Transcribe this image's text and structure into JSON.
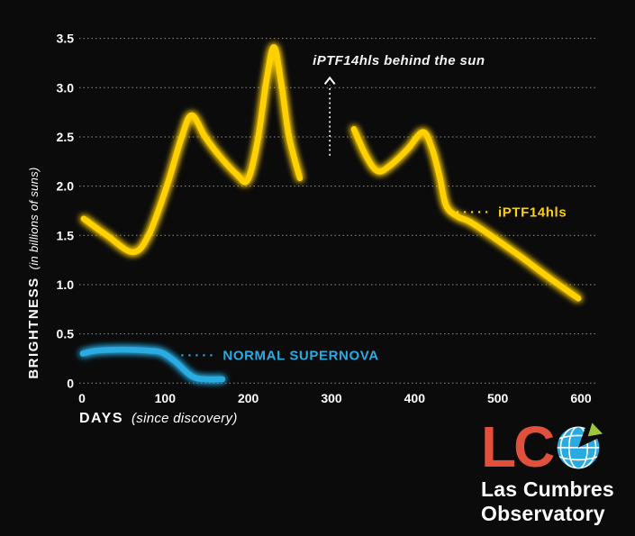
{
  "colors": {
    "background": "#0b0b0c",
    "yellow": "#ffd100",
    "blue": "#29abe2",
    "grid": "rgba(255,255,255,0.55)",
    "text": "#ffffff"
  },
  "chart_data": {
    "type": "line",
    "title": "",
    "xlabel": "DAYS",
    "xlabel_suffix": "(since discovery)",
    "ylabel": "BRIGHTNESS",
    "ylabel_suffix": "(in billions of suns)",
    "xlim": [
      0,
      600
    ],
    "ylim": [
      0,
      3.5
    ],
    "x_ticks": [
      0,
      100,
      200,
      300,
      400,
      500,
      600
    ],
    "y_tick_labels": [
      "0",
      "0.5",
      "1.0",
      "1.5",
      "2.0",
      "2.5",
      "3.0",
      "3.5"
    ],
    "grid": "horizontal dotted lines at every 0.5, dotted baseline at 0",
    "legend_position": "inline curve labels",
    "series": [
      {
        "name": "iPTF14hls",
        "color": "#ffd100",
        "units": {
          "x": "days since discovery",
          "y": "billions of suns"
        },
        "gap_note": "no data between day ~262 and ~327 while iPTF14hls was behind the sun",
        "segments": [
          [
            [
              2,
              1.67
            ],
            [
              30,
              1.5
            ],
            [
              61,
              1.33
            ],
            [
              80,
              1.5
            ],
            [
              102,
              2.0
            ],
            [
              120,
              2.5
            ],
            [
              132,
              2.72
            ],
            [
              148,
              2.5
            ],
            [
              166,
              2.3
            ],
            [
              186,
              2.12
            ],
            [
              199,
              2.06
            ],
            [
              211,
              2.45
            ],
            [
              222,
              3.08
            ],
            [
              231,
              3.41
            ],
            [
              240,
              3.02
            ],
            [
              249,
              2.5
            ],
            [
              262,
              2.08
            ]
          ],
          [
            [
              327,
              2.58
            ],
            [
              342,
              2.3
            ],
            [
              356,
              2.15
            ],
            [
              372,
              2.22
            ],
            [
              392,
              2.38
            ],
            [
              410,
              2.55
            ],
            [
              421,
              2.38
            ],
            [
              430,
              2.1
            ],
            [
              438,
              1.8
            ],
            [
              452,
              1.69
            ],
            [
              470,
              1.62
            ],
            [
              520,
              1.33
            ],
            [
              560,
              1.08
            ],
            [
              597,
              0.86
            ]
          ]
        ]
      },
      {
        "name": "NORMAL SUPERNOVA",
        "color": "#29abe2",
        "units": {
          "x": "days since discovery",
          "y": "billions of suns"
        },
        "segments": [
          [
            [
              1,
              0.3
            ],
            [
              18,
              0.33
            ],
            [
              50,
              0.34
            ],
            [
              80,
              0.33
            ],
            [
              96,
              0.31
            ],
            [
              112,
              0.22
            ],
            [
              132,
              0.07
            ],
            [
              148,
              0.04
            ],
            [
              169,
              0.04
            ]
          ]
        ]
      }
    ],
    "annotations": {
      "behind_sun": {
        "text": "iPTF14hls behind the sun",
        "arrow_day": 298,
        "arrow_value_from": 2.31,
        "arrow_value_to": 3.1
      },
      "label_iptf": {
        "text": "iPTF14hls",
        "day": 482,
        "value": 1.73
      },
      "label_normal": {
        "text": "NORMAL SUPERNOVA",
        "day": 151,
        "value": 0.28
      }
    }
  },
  "logo": {
    "monogram": "LC",
    "name_line1": "Las Cumbres",
    "name_line2": "Observatory",
    "colors": {
      "monogram": "#e0503a",
      "globe": "#29abe2",
      "wedge": "#9dc73b",
      "text": "#ffffff"
    }
  }
}
